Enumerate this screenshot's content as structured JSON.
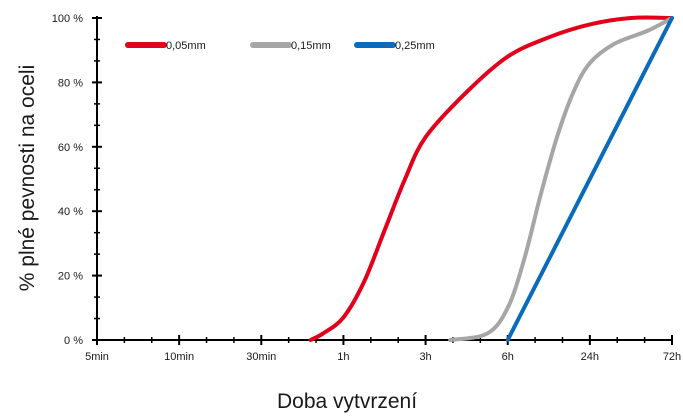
{
  "chart_data": {
    "type": "line",
    "xlabel": "Doba vytvrzení",
    "ylabel": "% plné pevnosti na oceli",
    "categories": [
      "5min",
      "10min",
      "30min",
      "1h",
      "3h",
      "6h",
      "24h",
      "72h"
    ],
    "x_scale": "categorical (equally spaced ticks)",
    "ylim": [
      0,
      100
    ],
    "y_ticks": [
      0,
      20,
      40,
      60,
      80,
      100
    ],
    "y_tick_labels": [
      "0 %",
      "20 %",
      "40 %",
      "60 %",
      "80 %",
      "100 %"
    ],
    "grid": false,
    "legend_position": "top-left",
    "series": [
      {
        "name": "0,05mm",
        "color": "#e2001a",
        "points": [
          {
            "x": "30min",
            "x_index": 2.6,
            "y": 0
          },
          {
            "x": "30min",
            "x_index": 2.75,
            "y": 2
          },
          {
            "x": "1h",
            "x_index": 3.0,
            "y": 7
          },
          {
            "x": "1h",
            "x_index": 3.25,
            "y": 18
          },
          {
            "x": "1h",
            "x_index": 3.5,
            "y": 34
          },
          {
            "x": "3h",
            "x_index": 3.75,
            "y": 50
          },
          {
            "x": "3h",
            "x_index": 4.0,
            "y": 63
          },
          {
            "x": "3h",
            "x_index": 4.5,
            "y": 77
          },
          {
            "x": "6h",
            "x_index": 5.0,
            "y": 88
          },
          {
            "x": "6h",
            "x_index": 5.5,
            "y": 94
          },
          {
            "x": "24h",
            "x_index": 6.0,
            "y": 98
          },
          {
            "x": "24h",
            "x_index": 6.5,
            "y": 100
          },
          {
            "x": "72h",
            "x_index": 7.0,
            "y": 100
          }
        ]
      },
      {
        "name": "0,15mm",
        "color": "#a6a6a6",
        "points": [
          {
            "x": "3h",
            "x_index": 4.3,
            "y": 0
          },
          {
            "x": "6h",
            "x_index": 4.75,
            "y": 2
          },
          {
            "x": "6h",
            "x_index": 5.0,
            "y": 10
          },
          {
            "x": "6h",
            "x_index": 5.2,
            "y": 25
          },
          {
            "x": "6h",
            "x_index": 5.4,
            "y": 45
          },
          {
            "x": "6h",
            "x_index": 5.6,
            "y": 63
          },
          {
            "x": "24h",
            "x_index": 5.8,
            "y": 77
          },
          {
            "x": "24h",
            "x_index": 6.0,
            "y": 86
          },
          {
            "x": "24h",
            "x_index": 6.3,
            "y": 92
          },
          {
            "x": "24h",
            "x_index": 6.7,
            "y": 96
          },
          {
            "x": "72h",
            "x_index": 7.0,
            "y": 100
          }
        ]
      },
      {
        "name": "0,25mm",
        "color": "#0a6bbd",
        "points": [
          {
            "x": "6h",
            "x_index": 5.0,
            "y": 0
          },
          {
            "x": "72h",
            "x_index": 7.0,
            "y": 100
          }
        ]
      }
    ]
  }
}
